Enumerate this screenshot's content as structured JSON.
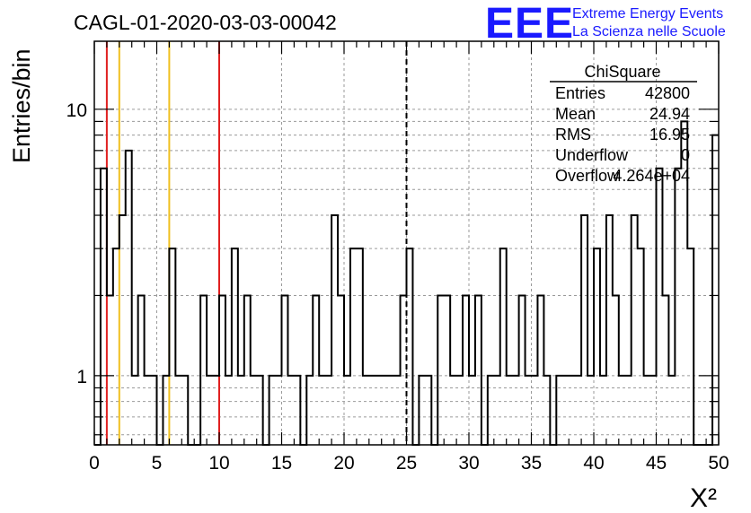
{
  "chart_data": {
    "type": "bar",
    "title": "CAGL-01-2020-03-03-00042",
    "xlabel": "X²",
    "ylabel": "Entries/bin",
    "xlim": [
      0,
      50
    ],
    "ylim": [
      0.55,
      18
    ],
    "yscale": "log",
    "grid": true,
    "bin_width": 0.5,
    "x_ticks": [
      0,
      5,
      10,
      15,
      20,
      25,
      30,
      35,
      40,
      45,
      50
    ],
    "y_ticks": [
      1,
      10
    ],
    "values": [
      0,
      6,
      2,
      3,
      4,
      7,
      1,
      2,
      1,
      1,
      0,
      1,
      3,
      1,
      1,
      0,
      0,
      2,
      1,
      1,
      2,
      1,
      3,
      1,
      2,
      1,
      1,
      0,
      1,
      1,
      2,
      1,
      1,
      0,
      1,
      2,
      1,
      1,
      4,
      2,
      1,
      3,
      3,
      1,
      1,
      1,
      1,
      1,
      1,
      2,
      3,
      0,
      1,
      1,
      0,
      2,
      2,
      1,
      1,
      2,
      1,
      2,
      0,
      1,
      1,
      3,
      1,
      1,
      2,
      1,
      1,
      2,
      1,
      0,
      1,
      1,
      1,
      1,
      4,
      1,
      3,
      1,
      4,
      2,
      1,
      1,
      4,
      3,
      1,
      1,
      6,
      2,
      1,
      6,
      9,
      3,
      0,
      0,
      0,
      8
    ],
    "reference_lines": [
      {
        "x": 1,
        "color": "#e02020"
      },
      {
        "x": 2,
        "color": "#f0c020"
      },
      {
        "x": 6,
        "color": "#f0c020"
      },
      {
        "x": 10,
        "color": "#e02020"
      },
      {
        "x": 25,
        "color": "#000000",
        "style": "dashed"
      }
    ],
    "stats_box": {
      "title": "ChiSquare",
      "rows": [
        {
          "label": "Entries",
          "value": "42800"
        },
        {
          "label": "Mean",
          "value": "24.94"
        },
        {
          "label": "RMS",
          "value": "16.95"
        },
        {
          "label": "Underflow",
          "value": "0"
        },
        {
          "label": "Overflow",
          "value": "4.264e+04"
        }
      ]
    }
  },
  "logo": {
    "text": "EEE",
    "line1": "Extreme Energy Events",
    "line2": "La Scienza nelle Scuole",
    "color": "#1a1aff"
  }
}
